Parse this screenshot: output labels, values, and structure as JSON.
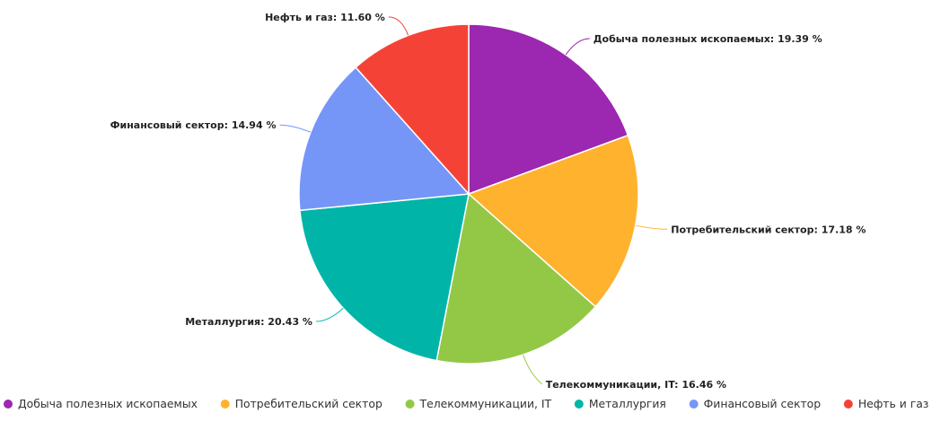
{
  "chart_data": {
    "type": "pie",
    "title": "",
    "legend_position": "bottom",
    "slices": [
      {
        "name": "Добыча полезных ископаемых",
        "value": 19.39,
        "label": "Добыча полезных ископаемых: 19.39 %",
        "color": "#9c27b0"
      },
      {
        "name": "Потребительский сектор",
        "value": 17.18,
        "label": "Потребительский сектор: 17.18 %",
        "color": "#ffb22e"
      },
      {
        "name": "Телекоммуникации, IT",
        "value": 16.46,
        "label": "Телекоммуникации, IT: 16.46 %",
        "color": "#93c847"
      },
      {
        "name": "Металлургия",
        "value": 20.43,
        "label": "Металлургия: 20.43 %",
        "color": "#00b5a8"
      },
      {
        "name": "Финансовый сектор",
        "value": 14.94,
        "label": "Финансовый сектор: 14.94 %",
        "color": "#7595f7"
      },
      {
        "name": "Нефть и газ",
        "value": 11.6,
        "label": "Нефть и газ: 11.60 %",
        "color": "#f44336"
      }
    ]
  }
}
